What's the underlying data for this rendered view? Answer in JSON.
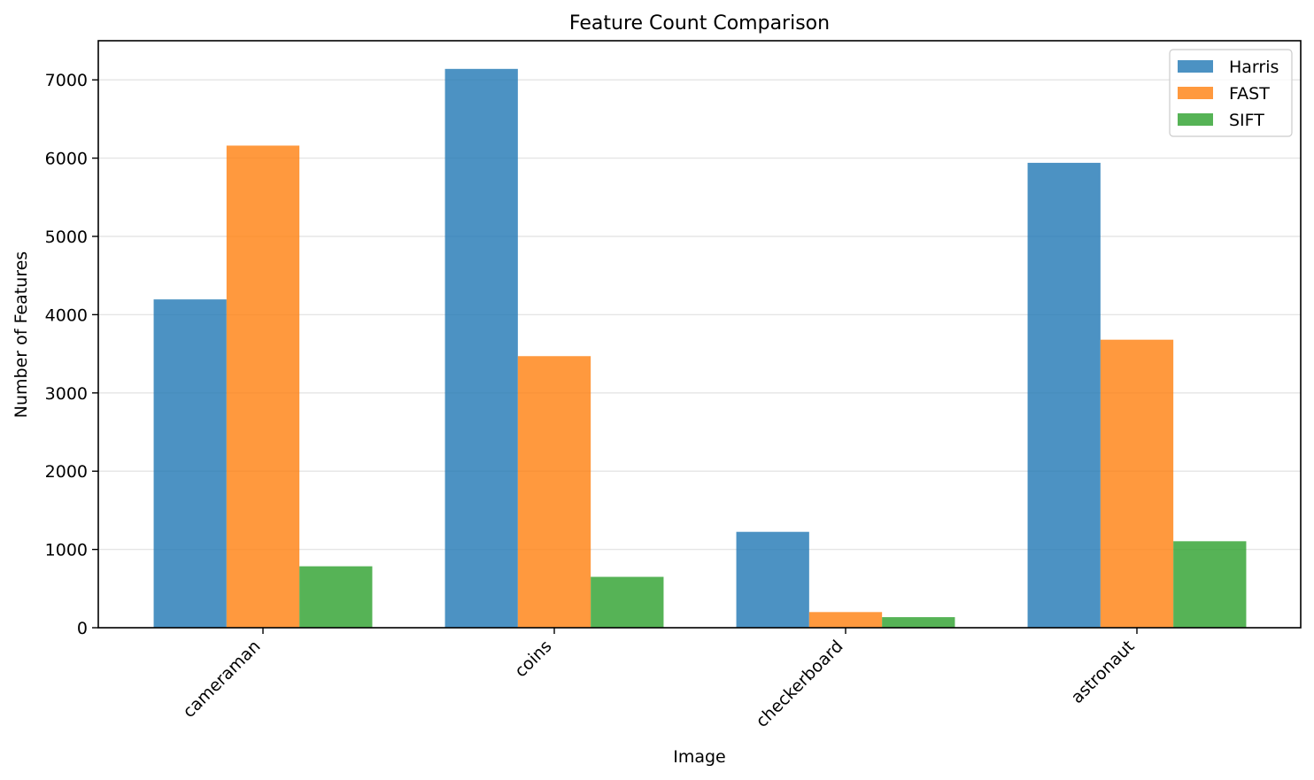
{
  "chart_data": {
    "type": "bar",
    "title": "Feature Count Comparison",
    "xlabel": "Image",
    "ylabel": "Number of Features",
    "categories": [
      "cameraman",
      "coins",
      "checkerboard",
      "astronaut"
    ],
    "series": [
      {
        "name": "Harris",
        "color": "#1f77b4",
        "values": [
          4195,
          7140,
          1225,
          5940
        ]
      },
      {
        "name": "FAST",
        "color": "#ff7f0e",
        "values": [
          6160,
          3470,
          200,
          3680
        ]
      },
      {
        "name": "SIFT",
        "color": "#2ca02c",
        "values": [
          785,
          650,
          135,
          1105
        ]
      }
    ],
    "ylim": [
      0,
      7500
    ],
    "yticks": [
      0,
      1000,
      2000,
      3000,
      4000,
      5000,
      6000,
      7000
    ],
    "grid": "y",
    "legend_position": "top-right"
  }
}
